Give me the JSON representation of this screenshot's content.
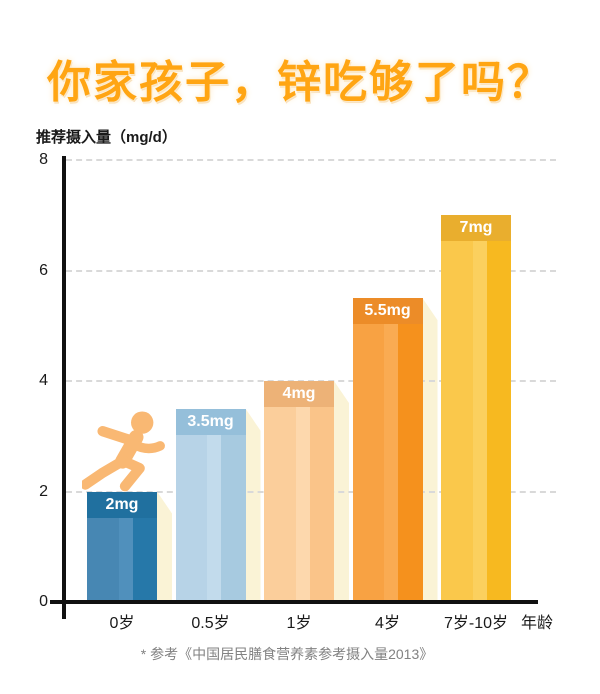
{
  "chart_data": {
    "type": "bar",
    "title": "你家孩子，锌吃够了吗？",
    "ylabel": "推荐摄入量（mg/d）",
    "xlabel": "年龄",
    "ylim": [
      0,
      8
    ],
    "yticks": [
      8,
      6,
      4,
      2,
      0
    ],
    "grid_values": [
      8,
      6,
      4,
      2
    ],
    "grid": "horizontal dashed",
    "legend": null,
    "categories": [
      "0岁",
      "0.5岁",
      "1岁",
      "4岁",
      "7岁-10岁"
    ],
    "values": [
      2,
      3.5,
      4,
      5.5,
      7
    ],
    "bar_value_labels": [
      "2mg",
      "3.5mg",
      "4mg",
      "5.5mg",
      "7mg"
    ],
    "bar_colors": [
      {
        "band": "#20709F",
        "stripes": [
          "#4787B3",
          "#5090BC",
          "#2678A9"
        ]
      },
      {
        "band": "#95BFDA",
        "stripes": [
          "#B7D3E7",
          "#C2DBEC",
          "#A7CAE0"
        ]
      },
      {
        "band": "#EDB277",
        "stripes": [
          "#FBCE9B",
          "#FDD8AD",
          "#FAC489"
        ]
      },
      {
        "band": "#EC8C28",
        "stripes": [
          "#F8A243",
          "#FAAB52",
          "#F5911D"
        ]
      },
      {
        "band": "#E9AE2E",
        "stripes": [
          "#FAC84B",
          "#FBD05E",
          "#F7B920"
        ]
      }
    ],
    "bar_has_shadow": [
      true,
      true,
      true,
      true,
      false
    ]
  },
  "footnote": "* 参考《中国居民膳食营养素参考摄入量2013》",
  "colors": {
    "title": "#FFA513",
    "axis": "#111111",
    "gridline": "#D9D9D9",
    "bar_shadow": "#FAF3D6",
    "runner": "#F9B873",
    "text": "#1A1A1A",
    "value_label": "#FFFFFF",
    "footnote": "#828282",
    "background": "#FFFFFF"
  },
  "icons": {
    "runner": "runner-icon"
  }
}
